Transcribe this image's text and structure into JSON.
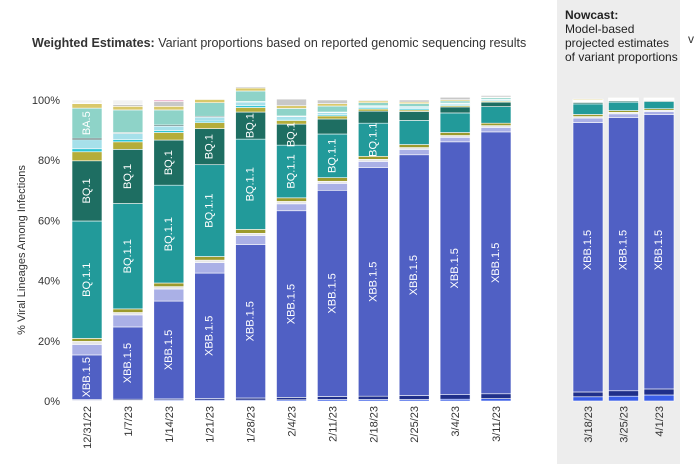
{
  "title": {
    "bold": "Weighted Estimates:",
    "rest": " Variant proportions based on reported genomic sequencing results"
  },
  "nowcast": {
    "bold": "Nowcast:",
    "rest": "Model-based projected estimates of variant proportions"
  },
  "edge_letter": "v",
  "chart_data": {
    "type": "bar",
    "stacked": true,
    "ylabel": "% Viral Lineages Among Infections",
    "ylim": [
      0,
      100
    ],
    "yticks": [
      "0%",
      "20%",
      "40%",
      "60%",
      "80%",
      "100%"
    ],
    "panels": [
      {
        "name": "weighted",
        "categories": [
          "12/31/22",
          "1/7/23",
          "1/14/23",
          "1/21/23",
          "1/28/23",
          "2/4/23",
          "2/11/23",
          "2/18/23",
          "2/25/23",
          "3/4/23",
          "3/11/23"
        ],
        "series": [
          {
            "color": "#3a5ee8",
            "values": [
              0.2,
              0.2,
              0.3,
              0.3,
              0.3,
              0.4,
              0.5,
              0.5,
              0.5,
              0.6,
              0.8
            ]
          },
          {
            "color": "#1f2f8a",
            "values": [
              0.3,
              0.4,
              0.4,
              0.5,
              0.7,
              0.8,
              1.0,
              1.1,
              1.3,
              1.5,
              1.6
            ]
          },
          {
            "label": "XBB.1.5",
            "color": "#5060c4",
            "values": [
              14.8,
              24,
              32.5,
              41.7,
              51,
              62,
              68.5,
              76,
              80,
              84,
              87
            ]
          },
          {
            "color": "#aab0e6",
            "values": [
              3.5,
              4,
              4,
              3.5,
              3,
              2.3,
              2.3,
              2,
              1.8,
              1.5,
              1.5
            ]
          },
          {
            "color": "#e6e6e6",
            "values": [
              1,
              0.8,
              0.8,
              0.8,
              0.7,
              0.8,
              0.7,
              0.7,
              0.6,
              0.6,
              0.6
            ]
          },
          {
            "color": "#9c9a2c",
            "values": [
              1,
              1.2,
              1.2,
              1.2,
              1.3,
              1.2,
              1.2,
              1.0,
              1.0,
              1.0,
              0.8
            ]
          },
          {
            "label": "BQ.1.1",
            "color": "#229a9a",
            "values": [
              39,
              35,
              32.5,
              30.5,
              30,
              17.5,
              14.5,
              11,
              8,
              6.5,
              5.5
            ]
          },
          {
            "label": "BQ.1",
            "color": "#1e6e62",
            "values": [
              20,
              18,
              15,
              12,
              9,
              7,
              5,
              4,
              3,
              2,
              1.5
            ]
          },
          {
            "color": "#b5ad3a",
            "values": [
              3,
              2.5,
              2.5,
              2,
              1.5,
              1.2,
              1.0,
              0.7,
              0.5,
              0.4,
              0.3
            ]
          },
          {
            "color": "#2ec4d4",
            "values": [
              1,
              0.8,
              0.6,
              0.5,
              0.6,
              0.4,
              0.4,
              0.4,
              0.4,
              0.3,
              0.3
            ]
          },
          {
            "color": "#a6e0ea",
            "values": [
              3,
              2,
              1.5,
              1.3,
              1.2,
              0.9,
              0.7,
              0.5,
              0.5,
              0.4,
              0.3
            ]
          },
          {
            "color": "#1b4a4a",
            "values": [
              0.5,
              0.3,
              0.4,
              0.3,
              0.2,
              0.2,
              0.2,
              0.2,
              0.2,
              0.2,
              0.1
            ]
          },
          {
            "label": "BA.5",
            "color": "#8ed3c8",
            "values": [
              10,
              7.5,
              5,
              4.5,
              3.5,
              2.5,
              2,
              1,
              1,
              0.7,
              0.5
            ]
          },
          {
            "color": "#d9c86a",
            "values": [
              1.5,
              1.2,
              1.2,
              1.1,
              1,
              0.9,
              0.8,
              0.6,
              0.5,
              0.4,
              0.2
            ]
          },
          {
            "color": "#c8c8c8",
            "values": [
              0.2,
              0.6,
              1.6,
              0.2,
              0.4,
              2.2,
              1.2,
              0.3,
              0.7,
              0.8,
              0.5
            ]
          },
          {
            "color": "#e8a0c0",
            "values": [
              0,
              0,
              0.5,
              0,
              0,
              0,
              0,
              0,
              0,
              0,
              0
            ]
          }
        ],
        "bar_labels": [
          [
            [
              "XBB.1.5",
              2
            ],
            [
              "BQ.1.1",
              6
            ],
            [
              "BQ.1",
              7
            ],
            [
              "BA.5",
              12
            ]
          ],
          [
            [
              "XBB.1.5",
              2
            ],
            [
              "BQ.1.1",
              6
            ],
            [
              "BQ.1",
              7
            ]
          ],
          [
            [
              "XBB.1.5",
              2
            ],
            [
              "BQ.1.1",
              6
            ],
            [
              "BQ.1",
              7
            ]
          ],
          [
            [
              "XBB.1.5",
              2
            ],
            [
              "BQ.1.1",
              6
            ],
            [
              "BQ.1",
              7
            ]
          ],
          [
            [
              "XBB.1.5",
              2
            ],
            [
              "BQ.1.1",
              6
            ],
            [
              "BQ.1",
              7
            ]
          ],
          [
            [
              "XBB.1.5",
              2
            ],
            [
              "BQ.1.1",
              6
            ],
            [
              "BQ.1",
              7
            ]
          ],
          [
            [
              "XBB.1.5",
              2
            ],
            [
              "BQ.1.1",
              6
            ]
          ],
          [
            [
              "XBB.1.5",
              2
            ],
            [
              "BQ.1.1",
              6
            ]
          ],
          [
            [
              "XBB.1.5",
              2
            ]
          ],
          [
            [
              "XBB.1.5",
              2
            ]
          ],
          [
            [
              "XBB.1.5",
              2
            ]
          ]
        ]
      },
      {
        "name": "nowcast",
        "categories": [
          "3/18/23",
          "3/25/23",
          "4/1/23"
        ],
        "series": [
          {
            "color": "#3a5ee8",
            "values": [
              1.4,
              1.6,
              2.0
            ]
          },
          {
            "color": "#1f2f8a",
            "values": [
              1.6,
              1.8,
              2.0
            ]
          },
          {
            "label": "XBB.1.5",
            "color": "#5060c4",
            "values": [
              89.5,
              90.8,
              91.2
            ]
          },
          {
            "color": "#aab0e6",
            "values": [
              1.5,
              1.2,
              1.0
            ]
          },
          {
            "color": "#e6e6e6",
            "values": [
              0.5,
              0.5,
              0.4
            ]
          },
          {
            "color": "#9c9a2c",
            "values": [
              0.7,
              0.6,
              0.5
            ]
          },
          {
            "color": "#229a9a",
            "values": [
              3.5,
              2.8,
              2.4
            ]
          },
          {
            "color": "#1e6e62",
            "values": [
              0.5,
              0.4,
              0.3
            ]
          },
          {
            "color": "#b5ad3a",
            "values": [
              0.2,
              0.2,
              0.2
            ]
          },
          {
            "color": "#2ec4d4",
            "values": [
              0.2,
              0.2,
              0.2
            ]
          },
          {
            "color": "#a6e0ea",
            "values": [
              0.2,
              0.2,
              0.1
            ]
          },
          {
            "color": "#8ed3c8",
            "values": [
              0.2,
              0.2,
              0.2
            ]
          },
          {
            "color": "#d9c86a",
            "values": [
              0.3,
              0.2,
              0.2
            ]
          }
        ],
        "bar_labels": [
          [
            [
              "XBB.1.5",
              2
            ]
          ],
          [
            [
              "XBB.1.5",
              2
            ]
          ],
          [
            [
              "XBB.1.5",
              2
            ]
          ]
        ]
      }
    ]
  }
}
